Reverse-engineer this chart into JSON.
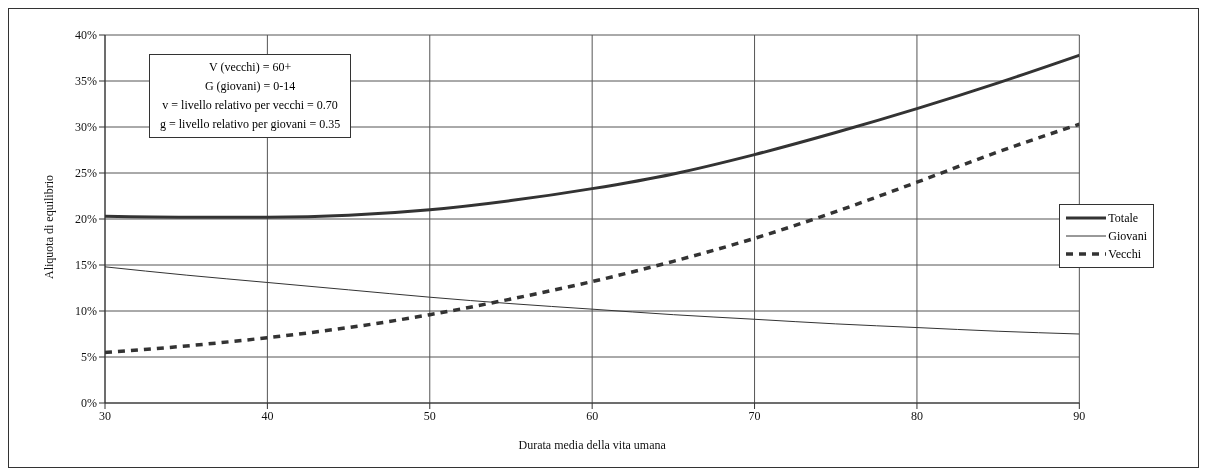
{
  "chart_data": {
    "type": "line",
    "xlabel": "Durata media della vita umana",
    "ylabel": "Aliquota di equilibrio",
    "x": [
      30,
      35,
      40,
      45,
      50,
      55,
      60,
      65,
      70,
      75,
      80,
      85,
      90
    ],
    "series": [
      {
        "name": "Totale",
        "color": "#333333",
        "line_style": "solid",
        "values": [
          20.3,
          20.2,
          20.2,
          20.4,
          21.0,
          22.0,
          23.3,
          24.9,
          27.0,
          29.4,
          32.0,
          34.8,
          37.8
        ]
      },
      {
        "name": "Giovani",
        "color": "#333333",
        "line_style": "solid",
        "values": [
          14.8,
          13.9,
          13.1,
          12.3,
          11.5,
          10.8,
          10.2,
          9.6,
          9.1,
          8.6,
          8.2,
          7.8,
          7.5
        ]
      },
      {
        "name": "Vecchi",
        "color": "#333333",
        "line_style": "dashed",
        "values": [
          5.5,
          6.2,
          7.1,
          8.2,
          9.6,
          11.3,
          13.2,
          15.4,
          17.9,
          20.8,
          24.0,
          27.3,
          30.3
        ]
      }
    ],
    "xlim": [
      30,
      90
    ],
    "xticks": [
      30,
      40,
      50,
      60,
      70,
      80,
      90
    ],
    "ylim": [
      0,
      40
    ],
    "yticks": [
      {
        "value": 0,
        "label": "0%"
      },
      {
        "value": 5,
        "label": "5%"
      },
      {
        "value": 10,
        "label": "10%"
      },
      {
        "value": 15,
        "label": "15%"
      },
      {
        "value": 20,
        "label": "20%"
      },
      {
        "value": 25,
        "label": "25%"
      },
      {
        "value": 30,
        "label": "30%"
      },
      {
        "value": 35,
        "label": "35%"
      },
      {
        "value": 40,
        "label": "40%"
      }
    ],
    "annotations": [
      "V (vecchi) = 60+",
      "G (giovani) = 0-14",
      "v = livello relativo per vecchi = 0.70",
      "g = livello relativo per giovani = 0.35"
    ],
    "grid": true,
    "legend": "right",
    "marker": "none"
  }
}
